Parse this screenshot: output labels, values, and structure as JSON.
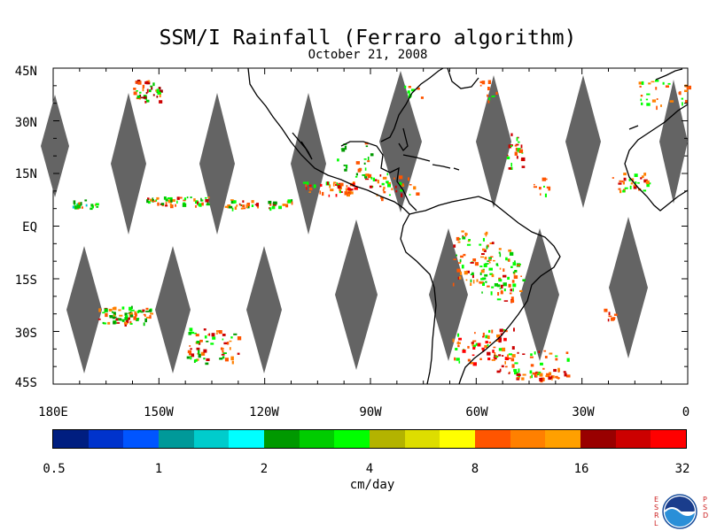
{
  "title": "SSM/I Rainfall (Ferraro algorithm)",
  "subtitle": "October 21, 2008",
  "lat_labels": [
    "45N",
    "30N",
    "15N",
    "EQ",
    "15S",
    "30S",
    "45S"
  ],
  "lon_labels": [
    "180E",
    "150W",
    "120W",
    "90W",
    "60W",
    "30W",
    "0"
  ],
  "colorbar": {
    "colors": [
      "#001e80",
      "#0033cc",
      "#0055ff",
      "#009999",
      "#00cccc",
      "#00ffff",
      "#009900",
      "#00cc00",
      "#00ff00",
      "#b3b300",
      "#dddd00",
      "#ffff00",
      "#ff5500",
      "#ff8000",
      "#ffa000",
      "#990000",
      "#cc0000",
      "#ff0000"
    ],
    "tick_labels": [
      "0.5",
      "1",
      "2",
      "4",
      "8",
      "16",
      "32"
    ]
  },
  "units": "cm/day",
  "logo": {
    "left_letters": [
      "E",
      "S",
      "R",
      "L"
    ],
    "right_letters": [
      "P",
      "S",
      "D"
    ],
    "name": "NOAA"
  },
  "swath_color": "#646464"
}
